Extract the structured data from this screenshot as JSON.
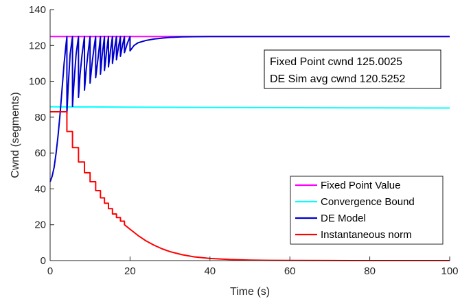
{
  "chart_data": {
    "type": "line",
    "xlabel": "Time (s)",
    "ylabel": "Cwnd (segments)",
    "xlim": [
      0,
      100
    ],
    "ylim": [
      0,
      140
    ],
    "xticks": [
      0,
      20,
      40,
      60,
      80,
      100
    ],
    "yticks": [
      0,
      20,
      40,
      60,
      80,
      100,
      120,
      140
    ],
    "grid": false,
    "legend_position": "bottom-right",
    "annotation": [
      "Fixed Point cwnd 125.0025",
      "DE Sim avg cwnd 120.5252"
    ],
    "series": [
      {
        "name": "Fixed Point Value",
        "color": "#ff00ff",
        "x": [
          0,
          100
        ],
        "y": [
          125.0,
          125.0
        ]
      },
      {
        "name": "Convergence Bound",
        "color": "#00ffff",
        "x": [
          0,
          20,
          40,
          60,
          80,
          100
        ],
        "y": [
          85.8,
          85.6,
          85.4,
          85.3,
          85.2,
          85.1
        ]
      },
      {
        "name": "DE Model",
        "color": "#0000cd",
        "x": [
          0,
          0.5,
          1,
          1.5,
          2,
          2.5,
          3,
          3.5,
          4,
          4.2,
          4.2,
          4.5,
          5,
          5.6,
          5.6,
          6,
          6.5,
          7.1,
          7.1,
          7.5,
          8,
          8.6,
          8.6,
          9,
          9.5,
          10.0,
          10.0,
          10.5,
          11.0,
          11.4,
          11.4,
          12.0,
          12.6,
          12.6,
          13.0,
          13.6,
          13.6,
          14.1,
          14.6,
          14.6,
          15.1,
          15.6,
          15.6,
          16.1,
          16.6,
          16.6,
          17.1,
          17.6,
          17.6,
          18.1,
          18.6,
          18.6,
          19.3,
          20.0,
          20.0,
          21.0,
          22.0,
          24.0,
          26.0,
          28.0,
          30.0,
          33.0,
          36.0,
          40.0,
          45.0,
          50.0,
          100
        ],
        "y": [
          44,
          47,
          52,
          60,
          70,
          82,
          96,
          110,
          121,
          125,
          82,
          96,
          115,
          125,
          86,
          100,
          115,
          125,
          91,
          104,
          115,
          125,
          95,
          106,
          116,
          125,
          99,
          110,
          119,
          125,
          102,
          113,
          125,
          104,
          114,
          125,
          106,
          116,
          125,
          108,
          117,
          125,
          110,
          118,
          125,
          112,
          119,
          125,
          114,
          120,
          125,
          116,
          121,
          125,
          117,
          120,
          121.5,
          122.8,
          123.6,
          124.1,
          124.5,
          124.8,
          124.9,
          125.0,
          125.0,
          125.0,
          125.0
        ]
      },
      {
        "name": "Instantaneous norm",
        "color": "#ff0000",
        "x": [
          0,
          4.2,
          4.2,
          5.6,
          5.6,
          7.1,
          7.1,
          8.6,
          8.6,
          10.0,
          10.0,
          11.4,
          11.4,
          12.6,
          12.6,
          13.6,
          13.6,
          14.6,
          14.6,
          15.6,
          15.6,
          16.6,
          16.6,
          17.6,
          17.6,
          18.6,
          18.6,
          20,
          22,
          24,
          26,
          28,
          30,
          33,
          36,
          40,
          45,
          50,
          55,
          60,
          70,
          80,
          100
        ],
        "y": [
          83,
          83,
          72,
          72,
          63,
          63,
          55,
          55,
          49,
          49,
          44,
          44,
          39,
          39,
          35,
          35,
          32,
          32,
          29,
          29,
          26,
          26,
          24,
          24,
          22,
          22,
          20,
          17.5,
          14,
          11,
          8.6,
          6.6,
          5.0,
          3.3,
          2.1,
          1.2,
          0.6,
          0.3,
          0.15,
          0.08,
          0.03,
          0.01,
          0.0
        ]
      }
    ]
  }
}
